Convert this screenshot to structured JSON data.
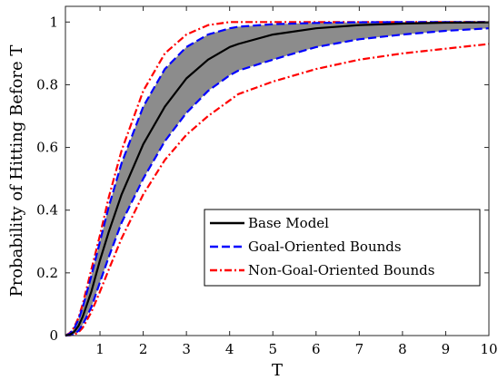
{
  "chart_data": {
    "type": "line",
    "title": "",
    "xlabel": "T",
    "ylabel": "Probability of Hitting Before T",
    "xlim": [
      0.2,
      10
    ],
    "ylim": [
      0,
      1.05
    ],
    "x_ticks": [
      "1",
      "2",
      "3",
      "4",
      "5",
      "6",
      "7",
      "8",
      "9",
      "10"
    ],
    "y_ticks": [
      "0",
      "0.2",
      "0.4",
      "0.6",
      "0.8",
      "1"
    ],
    "grid": false,
    "legend_position": "bottom-right",
    "band": {
      "fill_color": "#8c8c8c",
      "lower_series": "Goal-Oriented Bounds (lower)",
      "upper_series": "Goal-Oriented Bounds (upper)"
    },
    "x": [
      0.2,
      0.3,
      0.4,
      0.5,
      0.6,
      0.8,
      1.0,
      1.2,
      1.5,
      2.0,
      2.5,
      3.0,
      3.5,
      4.0,
      4.2,
      5.0,
      6.0,
      7.0,
      8.0,
      9.0,
      10.0
    ],
    "series": [
      {
        "name": "Base Model",
        "color": "#000000",
        "dash": "solid",
        "values": [
          0.0,
          0.003,
          0.012,
          0.03,
          0.06,
          0.14,
          0.24,
          0.33,
          0.45,
          0.61,
          0.73,
          0.82,
          0.88,
          0.92,
          0.93,
          0.96,
          0.98,
          0.99,
          0.995,
          0.998,
          0.999
        ]
      },
      {
        "name": "Goal-Oriented Bounds",
        "color": "#0000ff",
        "dash": "dashed",
        "values": [
          0.0,
          0.006,
          0.022,
          0.05,
          0.09,
          0.19,
          0.3,
          0.41,
          0.55,
          0.73,
          0.85,
          0.92,
          0.96,
          0.98,
          0.985,
          0.993,
          0.997,
          0.999,
          1.0,
          1.0,
          1.0
        ]
      },
      {
        "name": "Goal-Oriented Bounds (lower)",
        "color": "#0000ff",
        "dash": "dashed",
        "values": [
          0.0,
          0.001,
          0.005,
          0.015,
          0.035,
          0.09,
          0.17,
          0.25,
          0.36,
          0.5,
          0.62,
          0.71,
          0.78,
          0.83,
          0.845,
          0.88,
          0.92,
          0.945,
          0.96,
          0.972,
          0.98
        ]
      },
      {
        "name": "Non-Goal-Oriented Bounds",
        "color": "#ff0000",
        "dash": "dashdot",
        "values": [
          0.0,
          0.008,
          0.026,
          0.056,
          0.1,
          0.21,
          0.32,
          0.44,
          0.59,
          0.78,
          0.9,
          0.96,
          0.99,
          1.0,
          1.0,
          1.0,
          1.0,
          1.0,
          1.0,
          1.0,
          1.0
        ]
      },
      {
        "name": "Non-Goal-Oriented Bounds (lower)",
        "color": "#ff0000",
        "dash": "dashdot",
        "values": [
          0.0,
          0.0005,
          0.003,
          0.01,
          0.025,
          0.075,
          0.14,
          0.21,
          0.31,
          0.45,
          0.56,
          0.64,
          0.7,
          0.75,
          0.77,
          0.81,
          0.85,
          0.88,
          0.9,
          0.915,
          0.93
        ]
      }
    ],
    "legend": [
      {
        "label": "Base Model",
        "color": "#000000",
        "dash": "solid"
      },
      {
        "label": "Goal-Oriented Bounds",
        "color": "#0000ff",
        "dash": "dashed"
      },
      {
        "label": "Non-Goal-Oriented Bounds",
        "color": "#ff0000",
        "dash": "dashdot"
      }
    ]
  }
}
